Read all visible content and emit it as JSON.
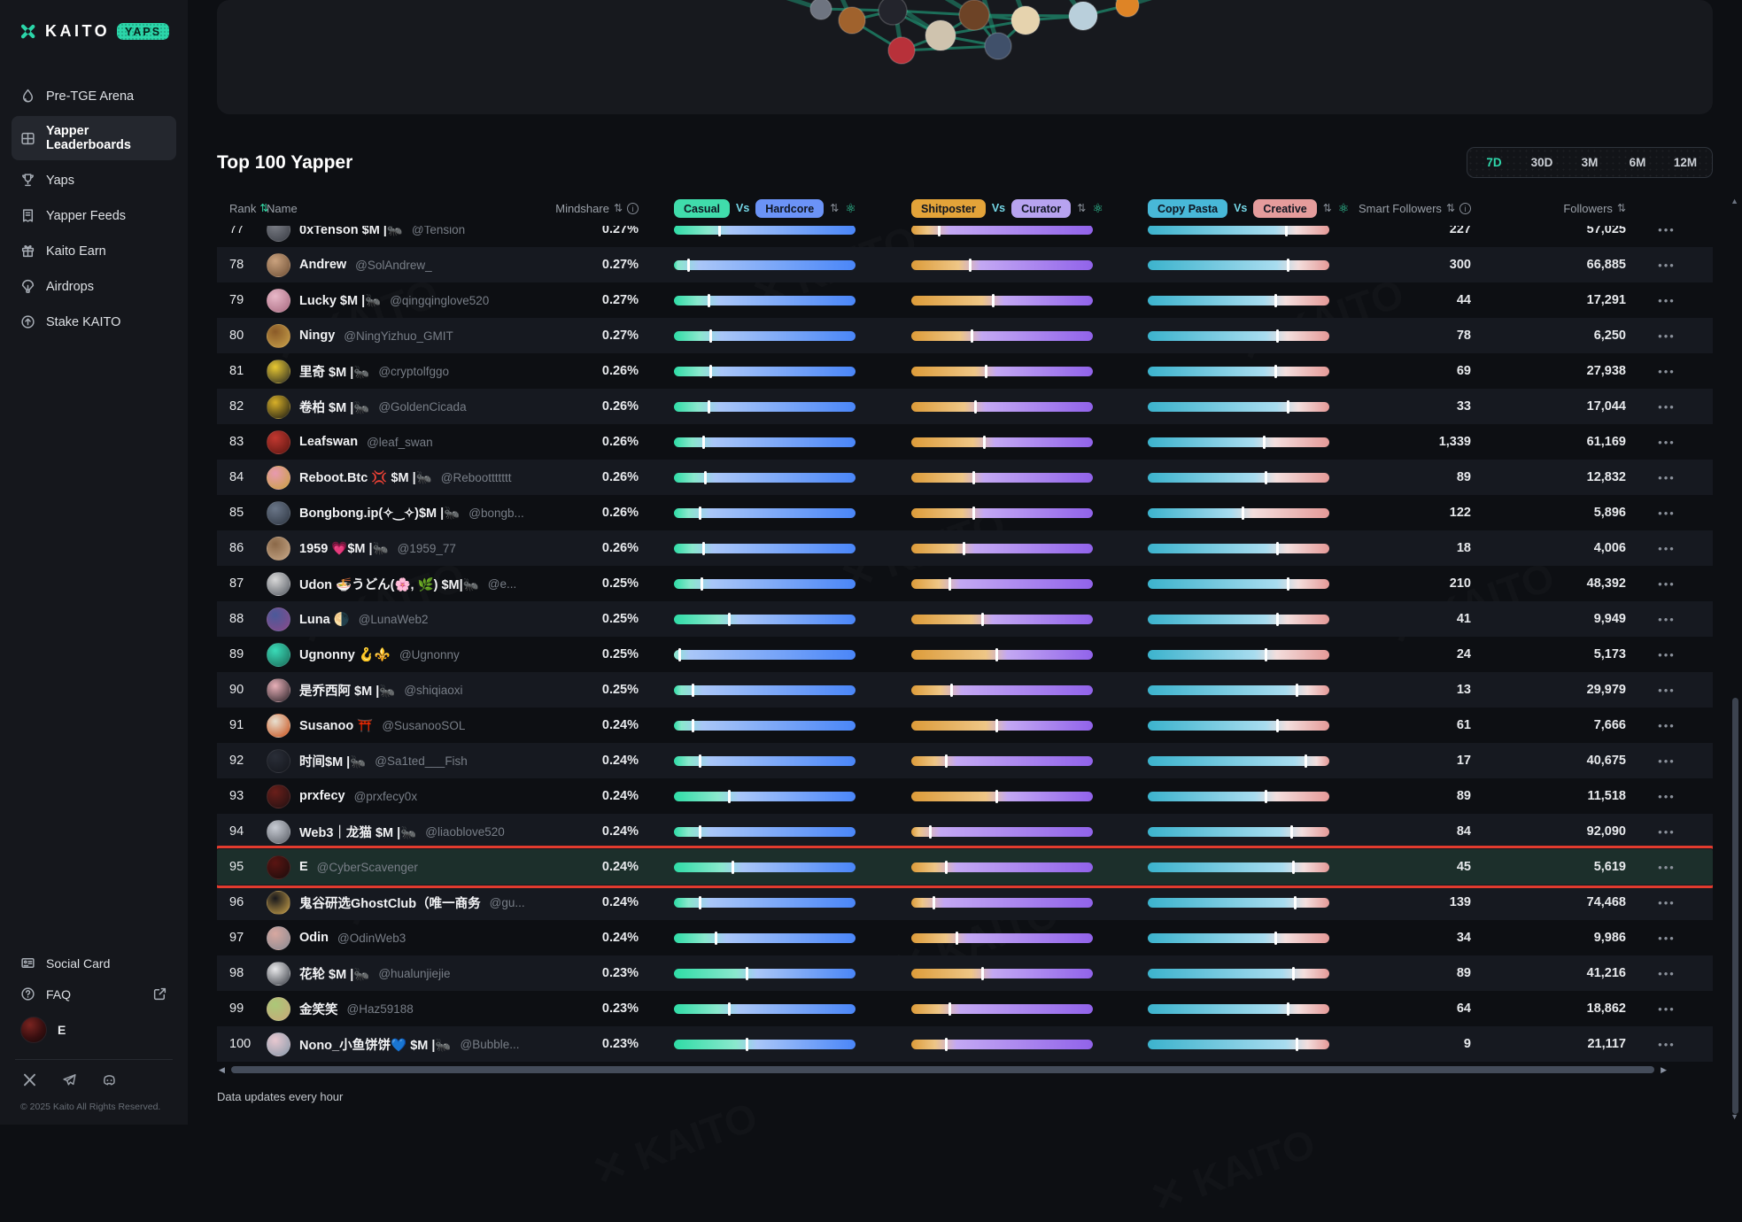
{
  "sidebar": {
    "brand": {
      "name": "KAITO",
      "badge": "YAPS"
    },
    "items": [
      {
        "label": "Pre-TGE Arena",
        "icon": "flame",
        "active": false
      },
      {
        "label": "Yapper Leaderboards",
        "icon": "board",
        "active": true
      },
      {
        "label": "Yaps",
        "icon": "trophy",
        "active": false
      },
      {
        "label": "Yapper Feeds",
        "icon": "feeds",
        "active": false
      },
      {
        "label": "Kaito Earn",
        "icon": "gift",
        "active": false
      },
      {
        "label": "Airdrops",
        "icon": "parachute",
        "active": false
      },
      {
        "label": "Stake KAITO",
        "icon": "stake",
        "active": false
      }
    ],
    "footer_items": [
      {
        "label": "Social Card",
        "icon": "card",
        "external": false
      },
      {
        "label": "FAQ",
        "icon": "faq",
        "external": true
      }
    ],
    "user": {
      "name": "E"
    },
    "social_icons": [
      "x",
      "telegram",
      "discord"
    ],
    "copyright": "© 2025 Kaito All Rights Reserved."
  },
  "header": {
    "title": "Top 100 Yapper",
    "ranges": [
      "7D",
      "30D",
      "3M",
      "6M",
      "12M"
    ],
    "active_range": "7D"
  },
  "table": {
    "watermark": "KAITO",
    "columns": {
      "rank": "Rank",
      "name": "Name",
      "mindshare": "Mindshare",
      "smart_followers": "Smart Followers",
      "followers": "Followers"
    },
    "chip_groups": [
      {
        "left": "Casual",
        "vs": "Vs",
        "right": "Hardcore"
      },
      {
        "left": "Shitposter",
        "vs": "Vs",
        "right": "Curator"
      },
      {
        "left": "Copy Pasta",
        "vs": "Vs",
        "right": "Creative"
      }
    ],
    "chip_colors": {
      "casual": "#40dcab",
      "hardcore": "#6b93f7",
      "shitposter": "#e3a339",
      "curator": "#b7a3f0",
      "copypasta": "#48b8d8",
      "creative": "#e59c9c"
    },
    "bar_colors": {
      "casual": [
        "#2fdca6",
        "#8ae8cd",
        "#a9c6f8",
        "#4a86f8"
      ],
      "shitposter": [
        "#dd9c3a",
        "#eec686",
        "#c3a8f3",
        "#9163ea"
      ],
      "copypasta": [
        "#3cb3cd",
        "#a8dcef",
        "#f3dedd",
        "#e59a98"
      ]
    },
    "rows": [
      {
        "rank": 77,
        "name": "0xTenson $M |🐜",
        "handle": "@Tension",
        "mindshare": "0.27%",
        "casual": 25,
        "shitposter": 15,
        "copypasta": 76,
        "smart": "227",
        "followers": "57,025",
        "avatar": [
          "#7a7d85",
          "#3a3d45"
        ],
        "highlighted": false
      },
      {
        "rank": 78,
        "name": "Andrew",
        "handle": "@SolAndrew_",
        "mindshare": "0.27%",
        "casual": 8,
        "shitposter": 32,
        "copypasta": 77,
        "smart": "300",
        "followers": "66,885",
        "avatar": [
          "#caa27e",
          "#6e4f35"
        ],
        "highlighted": false
      },
      {
        "rank": 79,
        "name": "Lucky $M |🐜",
        "handle": "@qingqinglove520",
        "mindshare": "0.27%",
        "casual": 19,
        "shitposter": 45,
        "copypasta": 70,
        "smart": "44",
        "followers": "17,291",
        "avatar": [
          "#e8b8c8",
          "#a86a80"
        ],
        "highlighted": false
      },
      {
        "rank": 80,
        "name": "Ningy",
        "handle": "@NingYizhuo_GMIT",
        "mindshare": "0.27%",
        "casual": 20,
        "shitposter": 33,
        "copypasta": 71,
        "smart": "78",
        "followers": "6,250",
        "avatar": [
          "#8a5a28",
          "#caa24a"
        ],
        "highlighted": false
      },
      {
        "rank": 81,
        "name": "里奇 $M |🐜",
        "handle": "@cryptolfggo",
        "mindshare": "0.26%",
        "casual": 20,
        "shitposter": 41,
        "copypasta": 70,
        "smart": "69",
        "followers": "27,938",
        "avatar": [
          "#e8c832",
          "#2a2a22"
        ],
        "highlighted": false
      },
      {
        "rank": 82,
        "name": "卷柏 $M |🐜",
        "handle": "@GoldenCicada",
        "mindshare": "0.26%",
        "casual": 19,
        "shitposter": 35,
        "copypasta": 77,
        "smart": "33",
        "followers": "17,044",
        "avatar": [
          "#d8b028",
          "#1a1a14"
        ],
        "highlighted": false
      },
      {
        "rank": 83,
        "name": "Leafswan",
        "handle": "@leaf_swan",
        "mindshare": "0.26%",
        "casual": 16,
        "shitposter": 40,
        "copypasta": 64,
        "smart": "1,339",
        "followers": "61,169",
        "avatar": [
          "#c23830",
          "#5a1510"
        ],
        "highlighted": false
      },
      {
        "rank": 84,
        "name": "Reboot.Btc 💢 $M |🐜",
        "handle": "@Reboottttttt",
        "mindshare": "0.26%",
        "casual": 17,
        "shitposter": 34,
        "copypasta": 65,
        "smart": "89",
        "followers": "12,832",
        "avatar": [
          "#e89ab0",
          "#caa040"
        ],
        "highlighted": false
      },
      {
        "rank": 85,
        "name": "Bongbong.ip(✧‿✧)$M |🐜",
        "handle": "@bongb...",
        "mindshare": "0.26%",
        "casual": 14,
        "shitposter": 34,
        "copypasta": 52,
        "smart": "122",
        "followers": "5,896",
        "avatar": [
          "#6a7688",
          "#2e3642"
        ],
        "highlighted": false
      },
      {
        "rank": 86,
        "name": "1959 💗$M |🐜",
        "handle": "@1959_77",
        "mindshare": "0.26%",
        "casual": 16,
        "shitposter": 29,
        "copypasta": 71,
        "smart": "18",
        "followers": "4,006",
        "avatar": [
          "#8a6848",
          "#c8a888"
        ],
        "highlighted": false
      },
      {
        "rank": 87,
        "name": "Udon 🍜うどん(🌸, 🌿) $M|🐜",
        "handle": "@e...",
        "mindshare": "0.25%",
        "casual": 15,
        "shitposter": 21,
        "copypasta": 77,
        "smart": "210",
        "followers": "48,392",
        "avatar": [
          "#d8d8d8",
          "#555a62"
        ],
        "highlighted": false
      },
      {
        "rank": 88,
        "name": "Luna 🌗",
        "handle": "@LunaWeb2",
        "mindshare": "0.25%",
        "casual": 30,
        "shitposter": 39,
        "copypasta": 71,
        "smart": "41",
        "followers": "9,949",
        "avatar": [
          "#4a5a9a",
          "#8a4a8a"
        ],
        "highlighted": false
      },
      {
        "rank": 89,
        "name": "Ugnonny 🪝⚜️",
        "handle": "@Ugnonny",
        "mindshare": "0.25%",
        "casual": 3,
        "shitposter": 47,
        "copypasta": 65,
        "smart": "24",
        "followers": "5,173",
        "avatar": [
          "#3adbb8",
          "#1a6a58"
        ],
        "highlighted": false
      },
      {
        "rank": 90,
        "name": "是乔西阿 $M |🐜",
        "handle": "@shiqiaoxi",
        "mindshare": "0.25%",
        "casual": 10,
        "shitposter": 22,
        "copypasta": 82,
        "smart": "13",
        "followers": "29,979",
        "avatar": [
          "#e8b0b8",
          "#2a2228"
        ],
        "highlighted": false
      },
      {
        "rank": 91,
        "name": "Susanoo ⛩️",
        "handle": "@SusanooSOL",
        "mindshare": "0.24%",
        "casual": 10,
        "shitposter": 47,
        "copypasta": 71,
        "smart": "61",
        "followers": "7,666",
        "avatar": [
          "#e8e0d0",
          "#c8501a"
        ],
        "highlighted": false
      },
      {
        "rank": 92,
        "name": "时间$M |🐜",
        "handle": "@Sa1ted___Fish",
        "mindshare": "0.24%",
        "casual": 14,
        "shitposter": 19,
        "copypasta": 87,
        "smart": "17",
        "followers": "40,675",
        "avatar": [
          "#2a2e38",
          "#14161c"
        ],
        "highlighted": false
      },
      {
        "rank": 93,
        "name": "prxfecy",
        "handle": "@prxfecy0x",
        "mindshare": "0.24%",
        "casual": 30,
        "shitposter": 47,
        "copypasta": 65,
        "smart": "89",
        "followers": "11,518",
        "avatar": [
          "#6a1f1a",
          "#201012"
        ],
        "highlighted": false
      },
      {
        "rank": 94,
        "name": "Web3｜龙猫 $M |🐜",
        "handle": "@liaoblove520",
        "mindshare": "0.24%",
        "casual": 14,
        "shitposter": 10,
        "copypasta": 79,
        "smart": "84",
        "followers": "92,090",
        "avatar": [
          "#c8ccd4",
          "#5a5e66"
        ],
        "highlighted": false
      },
      {
        "rank": 95,
        "name": "E",
        "handle": "@CyberScavenger",
        "mindshare": "0.24%",
        "casual": 32,
        "shitposter": 19,
        "copypasta": 80,
        "smart": "45",
        "followers": "5,619",
        "avatar": [
          "#5a1512",
          "#1a0c0c"
        ],
        "highlighted": true
      },
      {
        "rank": 96,
        "name": "鬼谷研选GhostClub（唯一商务",
        "handle": "@gu...",
        "mindshare": "0.24%",
        "casual": 14,
        "shitposter": 12,
        "copypasta": 81,
        "smart": "139",
        "followers": "74,468",
        "avatar": [
          "#18181c",
          "#caa24a"
        ],
        "highlighted": false
      },
      {
        "rank": 97,
        "name": "Odin",
        "handle": "@OdinWeb3",
        "mindshare": "0.24%",
        "casual": 23,
        "shitposter": 25,
        "copypasta": 70,
        "smart": "34",
        "followers": "9,986",
        "avatar": [
          "#d8a8a0",
          "#8a8a92"
        ],
        "highlighted": false
      },
      {
        "rank": 98,
        "name": "花轮 $M |🐜",
        "handle": "@hualunjiejie",
        "mindshare": "0.23%",
        "casual": 40,
        "shitposter": 39,
        "copypasta": 80,
        "smart": "89",
        "followers": "41,216",
        "avatar": [
          "#e8e8ea",
          "#3a3e46"
        ],
        "highlighted": false
      },
      {
        "rank": 99,
        "name": "金笑笑",
        "handle": "@Haz59188",
        "mindshare": "0.23%",
        "casual": 30,
        "shitposter": 21,
        "copypasta": 77,
        "smart": "64",
        "followers": "18,862",
        "avatar": [
          "#aac878",
          "#c8a878"
        ],
        "highlighted": false
      },
      {
        "rank": 100,
        "name": "Nono_小鱼饼饼💙 $M |🐜",
        "handle": "@Bubble...",
        "mindshare": "0.23%",
        "casual": 40,
        "shitposter": 19,
        "copypasta": 82,
        "smart": "9",
        "followers": "21,117",
        "avatar": [
          "#e8c8d0",
          "#8899aa"
        ],
        "highlighted": false
      }
    ]
  },
  "footer": {
    "note": "Data updates every hour"
  }
}
